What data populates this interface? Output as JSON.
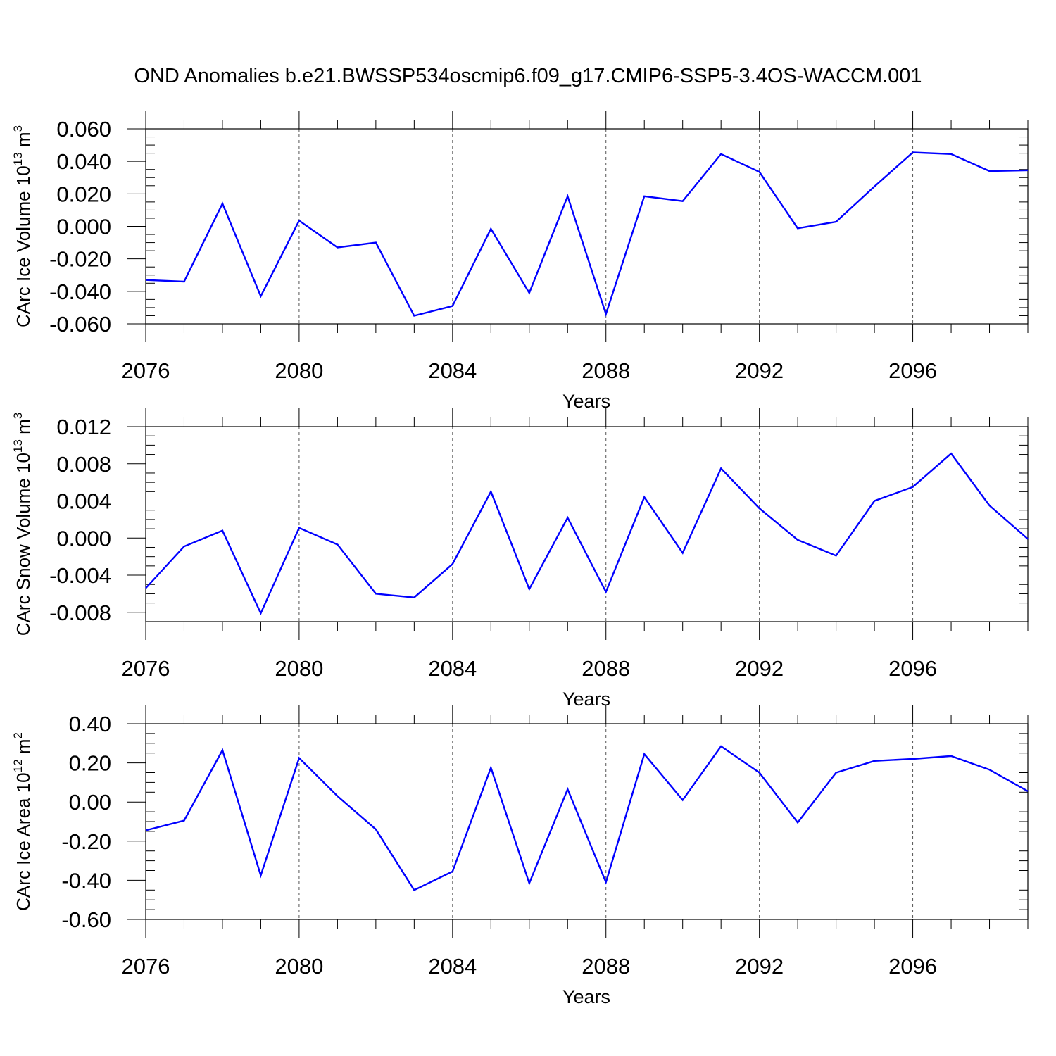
{
  "title": "OND Anomalies b.e21.BWSSP534oscmip6.f09_g17.CMIP6-SSP5-3.4OS-WACCM.001",
  "chart_data": [
    {
      "type": "line",
      "xlabel": "Years",
      "ylabel": {
        "text": "CArc Ice Volume 10",
        "sup1": "13",
        "mid": " m",
        "sup2": "3"
      },
      "xlim": [
        2076,
        2099
      ],
      "xticks": [
        "2076",
        "2080",
        "2084",
        "2088",
        "2092",
        "2096"
      ],
      "ylim": [
        -0.06,
        0.06
      ],
      "yticks": [
        "-0.060",
        "-0.040",
        "-0.020",
        "0.000",
        "0.020",
        "0.040",
        "0.060"
      ],
      "line_color": "#0000ff",
      "grid": "vertical dashed at major x ticks",
      "series": [
        {
          "x": [
            2076,
            2077,
            2078,
            2079,
            2080,
            2081,
            2082,
            2083,
            2084,
            2085,
            2086,
            2087,
            2088,
            2089,
            2090,
            2091,
            2092,
            2093,
            2094,
            2095,
            2096,
            2097,
            2098,
            2099
          ],
          "values": [
            -0.033,
            -0.034,
            0.014,
            -0.043,
            0.0035,
            -0.013,
            -0.01,
            -0.055,
            -0.049,
            -0.0015,
            -0.041,
            0.0185,
            -0.054,
            0.0185,
            0.0155,
            0.0445,
            0.0335,
            -0.0012,
            0.0028,
            0.0245,
            0.0455,
            0.0445,
            0.034,
            0.0345
          ]
        }
      ]
    },
    {
      "type": "line",
      "xlabel": "Years",
      "ylabel": {
        "text": "CArc Snow Volume 10",
        "sup1": "13",
        "mid": " m",
        "sup2": "3"
      },
      "xlim": [
        2076,
        2099
      ],
      "xticks": [
        "2076",
        "2080",
        "2084",
        "2088",
        "2092",
        "2096"
      ],
      "ylim": [
        -0.009,
        0.012
      ],
      "yticks": [
        "-0.008",
        "-0.004",
        "0.000",
        "0.004",
        "0.008",
        "0.012"
      ],
      "line_color": "#0000ff",
      "grid": "vertical dashed at major x ticks",
      "series": [
        {
          "x": [
            2076,
            2077,
            2078,
            2079,
            2080,
            2081,
            2082,
            2083,
            2084,
            2085,
            2086,
            2087,
            2088,
            2089,
            2090,
            2091,
            2092,
            2093,
            2094,
            2095,
            2096,
            2097,
            2098,
            2099
          ],
          "values": [
            -0.0054,
            -0.0009,
            0.0008,
            -0.0081,
            0.0011,
            -0.0007,
            -0.006,
            -0.0064,
            -0.0028,
            0.005,
            -0.0055,
            0.0022,
            -0.0058,
            0.0044,
            -0.0016,
            0.0075,
            0.0032,
            -0.0002,
            -0.0019,
            0.004,
            0.0055,
            0.0091,
            0.0035,
            -0.0001
          ]
        }
      ]
    },
    {
      "type": "line",
      "xlabel": "Years",
      "ylabel": {
        "text": "CArc Ice Area 10",
        "sup1": "12",
        "mid": " m",
        "sup2": "2"
      },
      "xlim": [
        2076,
        2099
      ],
      "xticks": [
        "2076",
        "2080",
        "2084",
        "2088",
        "2092",
        "2096"
      ],
      "ylim": [
        -0.6,
        0.4
      ],
      "yticks": [
        "-0.60",
        "-0.40",
        "-0.20",
        "0.00",
        "0.20",
        "0.40"
      ],
      "line_color": "#0000ff",
      "grid": "vertical dashed at major x ticks",
      "series": [
        {
          "x": [
            2076,
            2077,
            2078,
            2079,
            2080,
            2081,
            2082,
            2083,
            2084,
            2085,
            2086,
            2087,
            2088,
            2089,
            2090,
            2091,
            2092,
            2093,
            2094,
            2095,
            2096,
            2097,
            2098,
            2099
          ],
          "values": [
            -0.145,
            -0.095,
            0.265,
            -0.375,
            0.225,
            0.03,
            -0.14,
            -0.45,
            -0.355,
            0.175,
            -0.415,
            0.065,
            -0.41,
            0.245,
            0.01,
            0.285,
            0.15,
            -0.105,
            0.15,
            0.21,
            0.22,
            0.235,
            0.165,
            0.055
          ]
        }
      ]
    }
  ]
}
